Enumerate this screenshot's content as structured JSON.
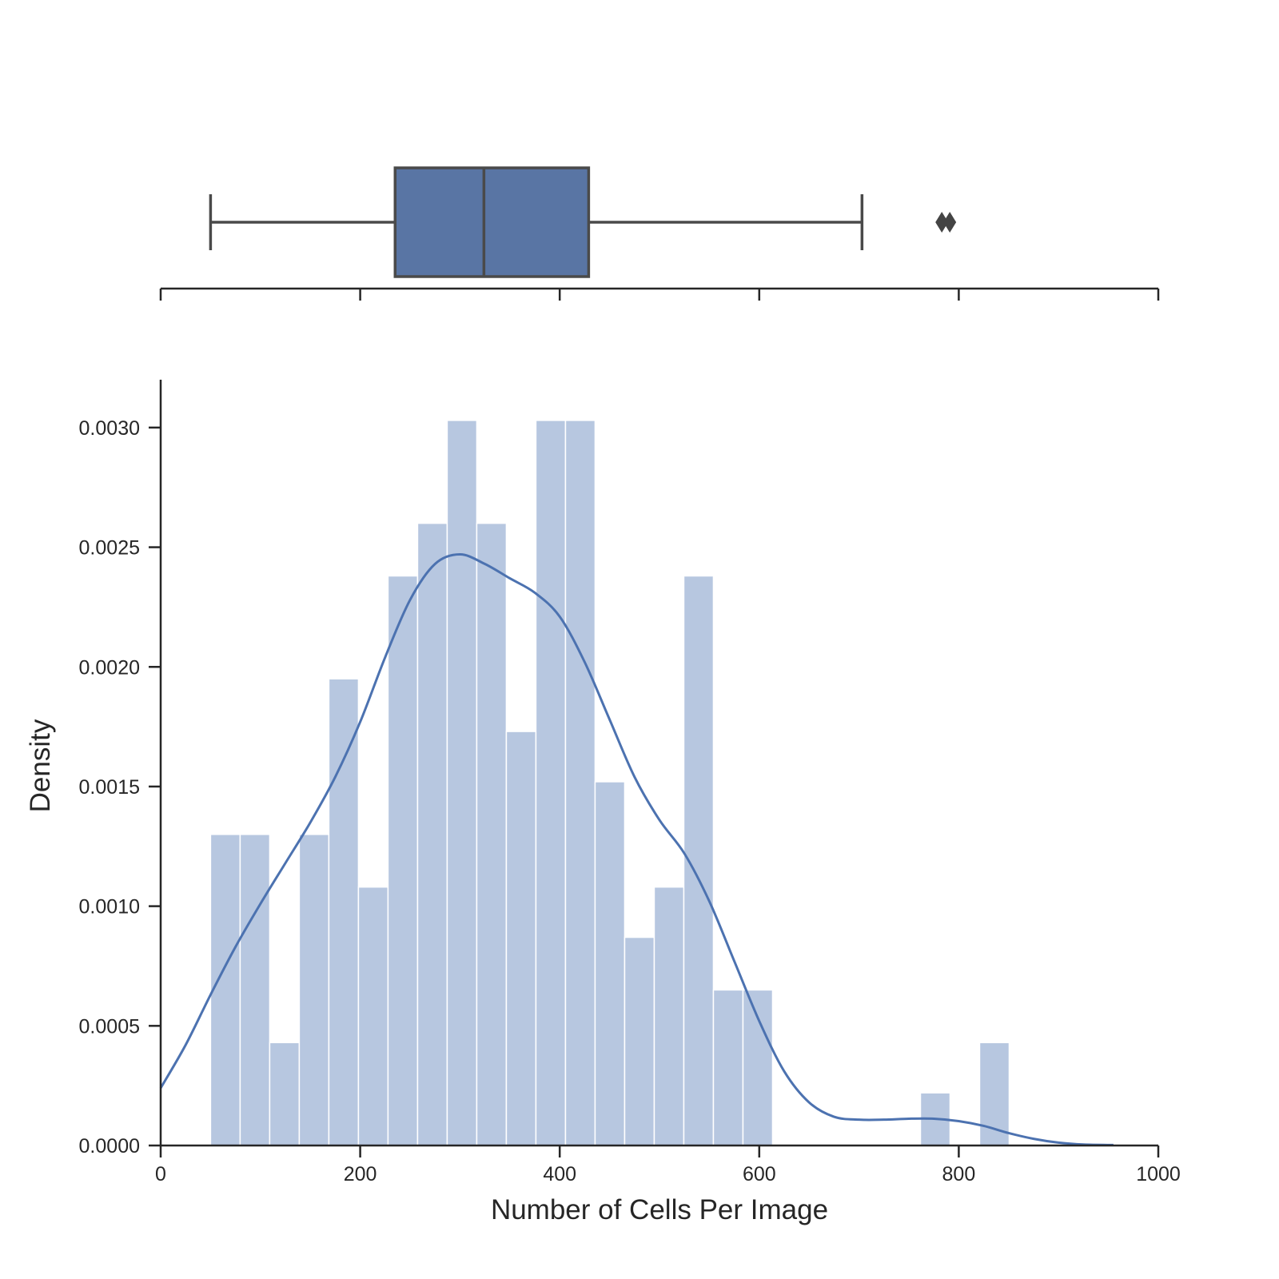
{
  "colors": {
    "bar_fill": "#b7c7e0",
    "bar_edge": "#ffffff",
    "kde_line": "#4c72b0",
    "box_fill": "#5975a4",
    "box_edge": "#4a4a4a",
    "axis": "#262626",
    "outlier": "#444444"
  },
  "chart_data": [
    {
      "type": "boxplot",
      "orientation": "horizontal",
      "xlim": [
        0,
        1000
      ],
      "xticks": [
        0,
        200,
        400,
        600,
        800,
        1000
      ],
      "tick_labels_shown": false,
      "whisker_low": 50,
      "q1": 235,
      "median": 324,
      "q3": 429,
      "whisker_high": 703,
      "outliers": [
        783,
        791
      ]
    },
    {
      "type": "histogram",
      "xlabel": "Number of Cells Per Image",
      "ylabel": "Density",
      "xlim": [
        0,
        1000
      ],
      "ylim": [
        0,
        0.0032
      ],
      "xticks": [
        "0",
        "200",
        "400",
        "600",
        "800",
        "1000"
      ],
      "yticks": [
        "0.0000",
        "0.0005",
        "0.0010",
        "0.0015",
        "0.0020",
        "0.0025",
        "0.0030"
      ],
      "bins": {
        "start": 50,
        "width": 29.65,
        "densities": [
          0.0013,
          0.0013,
          0.00043,
          0.0013,
          0.00195,
          0.00108,
          0.00238,
          0.0026,
          0.00303,
          0.0026,
          0.00173,
          0.00303,
          0.00303,
          0.00152,
          0.00087,
          0.00108,
          0.00238,
          0.00065,
          0.00065,
          0,
          0,
          0,
          0,
          0,
          0.00022,
          0,
          0.00043
        ]
      },
      "kde": {
        "x": [
          0,
          25,
          50,
          75,
          100,
          125,
          150,
          175,
          200,
          225,
          250,
          275,
          300,
          325,
          350,
          375,
          400,
          425,
          450,
          475,
          500,
          525,
          550,
          575,
          600,
          625,
          650,
          675,
          700,
          725,
          750,
          775,
          800,
          825,
          850,
          875,
          900,
          925,
          955
        ],
        "y": [
          0.00024,
          0.00042,
          0.00063,
          0.00083,
          0.00101,
          0.00118,
          0.00135,
          0.00154,
          0.00177,
          0.00204,
          0.00228,
          0.00243,
          0.00247,
          0.00243,
          0.00237,
          0.00231,
          0.00221,
          0.00202,
          0.00178,
          0.00154,
          0.00136,
          0.00122,
          0.00102,
          0.00077,
          0.00052,
          0.00031,
          0.00018,
          0.00012,
          0.000108,
          0.000108,
          0.000112,
          0.000112,
          0.000102,
          8.2e-05,
          5.2e-05,
          2.8e-05,
          1.2e-05,
          4e-06,
          2e-06
        ]
      }
    }
  ]
}
